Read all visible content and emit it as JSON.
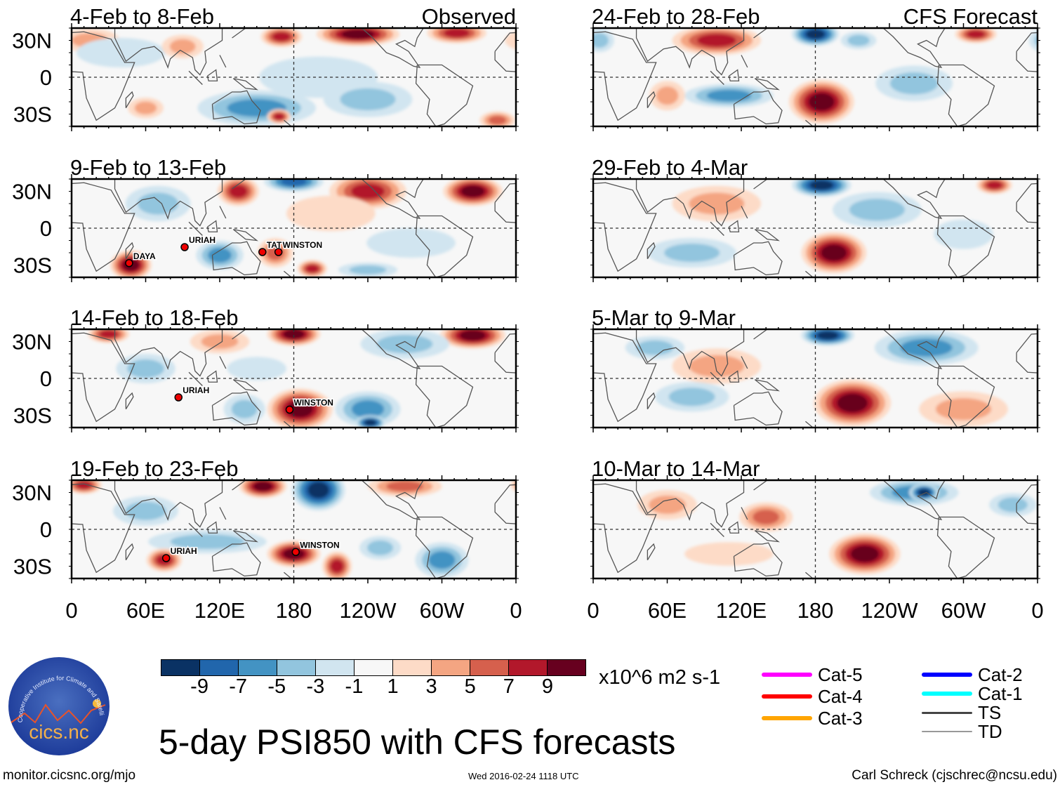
{
  "chart_data": {
    "type": "heatmap",
    "title": "5-day PSI850 with CFS forecasts",
    "units": "x10^6 m2 s-1",
    "column_labels": [
      "Observed",
      "CFS Forecast"
    ],
    "xticks": [
      "0",
      "60E",
      "120E",
      "180",
      "120W",
      "60W",
      "0"
    ],
    "xtick_values": [
      0,
      60,
      120,
      180,
      240,
      300,
      360
    ],
    "yticks": [
      "30N",
      "0",
      "30S"
    ],
    "ytick_values": [
      30,
      0,
      -30
    ],
    "xlim": [
      0,
      360
    ],
    "ylim": [
      -40,
      40
    ],
    "colorbar": {
      "labels": [
        "-9",
        "-7",
        "-5",
        "-3",
        "-1",
        "1",
        "3",
        "5",
        "7",
        "9"
      ],
      "colors": [
        "#0a3264",
        "#2166ac",
        "#4393c3",
        "#92c5de",
        "#d1e5f0",
        "#f7f7f7",
        "#fddbc7",
        "#f4a582",
        "#d6604d",
        "#b2182b",
        "#67001f"
      ]
    },
    "panels": [
      {
        "title": "4-Feb to 8-Feb",
        "column": 0,
        "row": 0,
        "anomalies": [
          [
            170,
            33,
            14,
            7,
            8
          ],
          [
            232,
            35,
            28,
            8,
            10
          ],
          [
            312,
            36,
            20,
            7,
            8
          ],
          [
            15,
            30,
            20,
            8,
            3
          ],
          [
            60,
            -25,
            12,
            7,
            4
          ],
          [
            150,
            -25,
            40,
            12,
            -5
          ],
          [
            200,
            0,
            40,
            14,
            -2
          ],
          [
            240,
            -18,
            30,
            12,
            -3
          ],
          [
            168,
            -32,
            8,
            5,
            8
          ],
          [
            345,
            -35,
            12,
            6,
            6
          ],
          [
            40,
            20,
            30,
            10,
            -2
          ],
          [
            90,
            25,
            14,
            8,
            3
          ]
        ],
        "storms": []
      },
      {
        "title": "9-Feb to 13-Feb",
        "column": 0,
        "row": 1,
        "anomalies": [
          [
            180,
            38,
            20,
            7,
            -8
          ],
          [
            135,
            30,
            14,
            10,
            7
          ],
          [
            240,
            30,
            26,
            12,
            8
          ],
          [
            325,
            30,
            20,
            10,
            10
          ],
          [
            70,
            20,
            22,
            12,
            -4
          ],
          [
            48,
            -30,
            14,
            10,
            10
          ],
          [
            165,
            -20,
            12,
            10,
            6
          ],
          [
            195,
            -33,
            10,
            6,
            8
          ],
          [
            120,
            -22,
            16,
            10,
            -5
          ],
          [
            275,
            -12,
            30,
            10,
            -2
          ],
          [
            210,
            12,
            30,
            12,
            2
          ],
          [
            240,
            -34,
            20,
            5,
            -4
          ]
        ],
        "storms": [
          {
            "name": "DAYA",
            "lon": 50,
            "lat": -25
          },
          {
            "name": "URIAH",
            "lon": 95,
            "lat": -12
          },
          {
            "name": "TAT",
            "lon": 158,
            "lat": -16
          },
          {
            "name": "WINSTON",
            "lon": 171,
            "lat": -16
          }
        ]
      },
      {
        "title": "14-Feb to 18-Feb",
        "column": 0,
        "row": 2,
        "anomalies": [
          [
            180,
            36,
            18,
            8,
            10
          ],
          [
            325,
            35,
            22,
            9,
            10
          ],
          [
            30,
            36,
            14,
            6,
            8
          ],
          [
            270,
            28,
            30,
            10,
            -4
          ],
          [
            185,
            -25,
            22,
            14,
            9
          ],
          [
            240,
            -25,
            22,
            12,
            -5
          ],
          [
            242,
            -36,
            10,
            5,
            -10
          ],
          [
            60,
            8,
            20,
            10,
            -3
          ],
          [
            140,
            -25,
            14,
            10,
            -4
          ],
          [
            120,
            30,
            20,
            8,
            3
          ],
          [
            150,
            8,
            20,
            8,
            -2
          ]
        ],
        "storms": [
          {
            "name": "URIAH",
            "lon": 90,
            "lat": -12
          },
          {
            "name": "WINSTON",
            "lon": 180,
            "lat": -22
          }
        ]
      },
      {
        "title": "19-Feb to 23-Feb",
        "column": 0,
        "row": 3,
        "anomalies": [
          [
            155,
            35,
            16,
            8,
            10
          ],
          [
            200,
            32,
            18,
            14,
            -10
          ],
          [
            10,
            36,
            12,
            6,
            7
          ],
          [
            60,
            15,
            22,
            10,
            -4
          ],
          [
            110,
            -10,
            40,
            8,
            -4
          ],
          [
            75,
            -25,
            12,
            8,
            7
          ],
          [
            180,
            -20,
            18,
            9,
            10
          ],
          [
            215,
            -30,
            10,
            10,
            8
          ],
          [
            300,
            -25,
            18,
            12,
            -5
          ],
          [
            250,
            -15,
            14,
            8,
            -4
          ],
          [
            270,
            35,
            25,
            7,
            5
          ]
        ],
        "storms": [
          {
            "name": "URIAH",
            "lon": 80,
            "lat": -20
          },
          {
            "name": "WINSTON",
            "lon": 185,
            "lat": -15
          }
        ]
      },
      {
        "title": "24-Feb to 28-Feb",
        "column": 1,
        "row": 0,
        "anomalies": [
          [
            180,
            35,
            16,
            8,
            -10
          ],
          [
            100,
            30,
            30,
            10,
            8
          ],
          [
            310,
            35,
            14,
            6,
            8
          ],
          [
            5,
            30,
            10,
            8,
            -4
          ],
          [
            185,
            -20,
            22,
            15,
            10
          ],
          [
            110,
            -15,
            30,
            8,
            -5
          ],
          [
            260,
            -5,
            26,
            12,
            -3
          ],
          [
            60,
            -15,
            12,
            10,
            3
          ],
          [
            215,
            30,
            12,
            6,
            -4
          ]
        ],
        "storms": []
      },
      {
        "title": "29-Feb to 4-Mar",
        "column": 1,
        "row": 1,
        "anomalies": [
          [
            185,
            35,
            20,
            8,
            -10
          ],
          [
            230,
            15,
            30,
            12,
            -4
          ],
          [
            100,
            20,
            30,
            12,
            4
          ],
          [
            195,
            -20,
            22,
            14,
            10
          ],
          [
            80,
            -20,
            30,
            10,
            -4
          ],
          [
            325,
            35,
            12,
            6,
            8
          ],
          [
            300,
            -5,
            20,
            10,
            -2
          ]
        ],
        "storms": []
      },
      {
        "title": "5-Mar to 9-Mar",
        "column": 1,
        "row": 2,
        "anomalies": [
          [
            190,
            35,
            18,
            7,
            -10
          ],
          [
            270,
            25,
            35,
            12,
            -5
          ],
          [
            210,
            -20,
            26,
            16,
            10
          ],
          [
            100,
            10,
            30,
            12,
            3
          ],
          [
            80,
            -15,
            25,
            10,
            -3
          ],
          [
            300,
            -25,
            30,
            12,
            3
          ],
          [
            50,
            25,
            20,
            8,
            -3
          ]
        ],
        "storms": []
      },
      {
        "title": "10-Mar to 14-Mar",
        "column": 1,
        "row": 3,
        "anomalies": [
          [
            260,
            30,
            30,
            9,
            -6
          ],
          [
            268,
            30,
            10,
            6,
            -9
          ],
          [
            140,
            10,
            18,
            10,
            5
          ],
          [
            220,
            -20,
            24,
            14,
            10
          ],
          [
            60,
            20,
            20,
            10,
            3
          ],
          [
            340,
            20,
            16,
            8,
            -3
          ],
          [
            110,
            -20,
            30,
            8,
            2
          ]
        ],
        "storms": []
      }
    ]
  },
  "legend": {
    "tracks": [
      {
        "label": "Cat-5",
        "color": "#ff00ff"
      },
      {
        "label": "Cat-4",
        "color": "#ff0000"
      },
      {
        "label": "Cat-3",
        "color": "#ffa500"
      },
      {
        "label": "Cat-2",
        "color": "#0000ff"
      },
      {
        "label": "Cat-1",
        "color": "#00ffff"
      },
      {
        "label": "TS",
        "color": "#444444"
      },
      {
        "label": "TD",
        "color": "#999999"
      }
    ]
  },
  "logo": {
    "text": "cics.nc",
    "ring_text": "Cooperative Institute for Climate and Satellites"
  },
  "footer": {
    "url": "monitor.cicsnc.org/mjo",
    "timestamp": "Wed 2016-02-24 1118 UTC",
    "author": "Carl Schreck (cjschrec@ncsu.edu)"
  }
}
